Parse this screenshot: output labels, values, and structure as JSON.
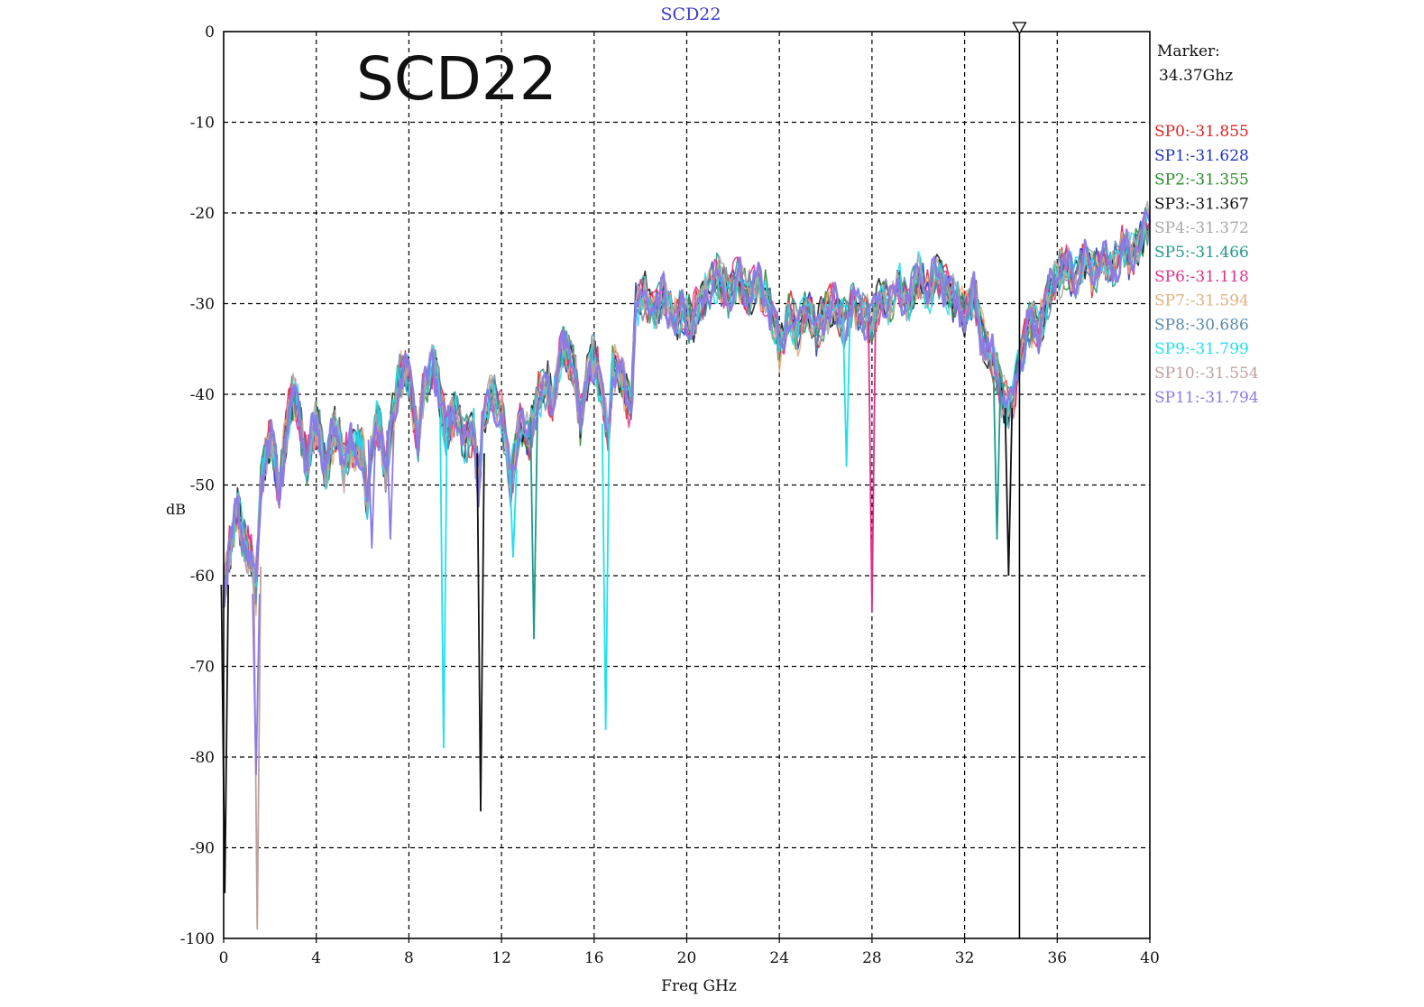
{
  "chart_data": {
    "type": "line",
    "title": "SCD22",
    "overlay_label": "SCD22",
    "xlabel": "Freq GHz",
    "ylabel": "dB",
    "xlim": [
      0,
      40
    ],
    "ylim": [
      -100,
      0
    ],
    "x_ticks": [
      0,
      4,
      8,
      12,
      16,
      20,
      24,
      28,
      32,
      36,
      40
    ],
    "y_ticks": [
      0,
      -10,
      -20,
      -30,
      -40,
      -50,
      -60,
      -70,
      -80,
      -90,
      -100
    ],
    "x_tick_labels": [
      "0",
      "4",
      "8",
      "12",
      "16",
      "20",
      "24",
      "28",
      "32",
      "36",
      "40"
    ],
    "y_tick_labels": [
      "0",
      "-10",
      "-20",
      "-30",
      "-40",
      "-50",
      "-60",
      "-70",
      "-80",
      "-90",
      "-100"
    ],
    "grid": true,
    "legend_position": "right",
    "marker": {
      "label": "Marker:",
      "value_text": "34.37Ghz",
      "x": 34.37
    },
    "series": [
      {
        "name": "SP0",
        "legend_text": "SP0:-31.855",
        "marker_value": -31.855,
        "color": "#e02020"
      },
      {
        "name": "SP1",
        "legend_text": "SP1:-31.628",
        "marker_value": -31.628,
        "color": "#2030c0"
      },
      {
        "name": "SP2",
        "legend_text": "SP2:-31.355",
        "marker_value": -31.355,
        "color": "#2a8a2a"
      },
      {
        "name": "SP3",
        "legend_text": "SP3:-31.367",
        "marker_value": -31.367,
        "color": "#111111"
      },
      {
        "name": "SP4",
        "legend_text": "SP4:-31.372",
        "marker_value": -31.372,
        "color": "#a8a8a8"
      },
      {
        "name": "SP5",
        "legend_text": "SP5:-31.466",
        "marker_value": -31.466,
        "color": "#1f9a8a"
      },
      {
        "name": "SP6",
        "legend_text": "SP6:-31.118",
        "marker_value": -31.118,
        "color": "#e0308a"
      },
      {
        "name": "SP7",
        "legend_text": "SP7:-31.594",
        "marker_value": -31.594,
        "color": "#e0b080"
      },
      {
        "name": "SP8",
        "legend_text": "SP8:-30.686",
        "marker_value": -30.686,
        "color": "#5a8aaa"
      },
      {
        "name": "SP9",
        "legend_text": "SP9:-31.799",
        "marker_value": -31.799,
        "color": "#20e0f0"
      },
      {
        "name": "SP10",
        "legend_text": "SP10:-31.554",
        "marker_value": -31.554,
        "color": "#c0a0a0"
      },
      {
        "name": "SP11",
        "legend_text": "SP11:-31.794",
        "marker_value": -31.794,
        "color": "#8a7ae8"
      }
    ],
    "envelope": [
      [
        0,
        -62
      ],
      [
        0.2,
        -58
      ],
      [
        0.4,
        -55
      ],
      [
        0.6,
        -53
      ],
      [
        0.8,
        -55
      ],
      [
        1.0,
        -57
      ],
      [
        1.2,
        -58
      ],
      [
        1.4,
        -62
      ],
      [
        1.6,
        -50
      ],
      [
        1.8,
        -47
      ],
      [
        2.0,
        -45
      ],
      [
        2.2,
        -47
      ],
      [
        2.4,
        -51
      ],
      [
        2.6,
        -46
      ],
      [
        2.8,
        -42
      ],
      [
        3.0,
        -40
      ],
      [
        3.2,
        -41
      ],
      [
        3.4,
        -45
      ],
      [
        3.6,
        -48
      ],
      [
        3.8,
        -45
      ],
      [
        4.0,
        -43
      ],
      [
        4.2,
        -45
      ],
      [
        4.4,
        -49
      ],
      [
        4.6,
        -46
      ],
      [
        4.8,
        -44
      ],
      [
        5.0,
        -45
      ],
      [
        5.2,
        -48
      ],
      [
        5.4,
        -46
      ],
      [
        5.6,
        -46
      ],
      [
        5.8,
        -46
      ],
      [
        6.0,
        -46
      ],
      [
        6.2,
        -52
      ],
      [
        6.4,
        -45
      ],
      [
        6.6,
        -43
      ],
      [
        6.8,
        -44
      ],
      [
        7.0,
        -49
      ],
      [
        7.2,
        -44
      ],
      [
        7.6,
        -38
      ],
      [
        7.8,
        -37
      ],
      [
        8.0,
        -38
      ],
      [
        8.4,
        -45
      ],
      [
        8.6,
        -40
      ],
      [
        9.0,
        -37
      ],
      [
        9.2,
        -38
      ],
      [
        9.6,
        -44
      ],
      [
        9.8,
        -43
      ],
      [
        10.0,
        -42
      ],
      [
        10.4,
        -45
      ],
      [
        10.8,
        -44
      ],
      [
        11.0,
        -50
      ],
      [
        11.2,
        -43
      ],
      [
        11.6,
        -40
      ],
      [
        12.0,
        -42
      ],
      [
        12.4,
        -50
      ],
      [
        12.8,
        -43
      ],
      [
        13.2,
        -45
      ],
      [
        13.6,
        -40
      ],
      [
        14.0,
        -39
      ],
      [
        14.2,
        -41
      ],
      [
        14.6,
        -35
      ],
      [
        14.8,
        -35
      ],
      [
        15.2,
        -38
      ],
      [
        15.4,
        -43
      ],
      [
        15.8,
        -37
      ],
      [
        16.0,
        -36
      ],
      [
        16.2,
        -38
      ],
      [
        16.6,
        -45
      ],
      [
        16.8,
        -37
      ],
      [
        17.2,
        -38
      ],
      [
        17.6,
        -42
      ],
      [
        17.8,
        -30
      ],
      [
        18.2,
        -29
      ],
      [
        18.6,
        -31
      ],
      [
        19.0,
        -29
      ],
      [
        19.4,
        -32
      ],
      [
        19.8,
        -31
      ],
      [
        20.2,
        -32
      ],
      [
        20.6,
        -30
      ],
      [
        21.0,
        -28
      ],
      [
        21.4,
        -27
      ],
      [
        21.8,
        -29
      ],
      [
        22.2,
        -27
      ],
      [
        22.6,
        -29
      ],
      [
        23.0,
        -28
      ],
      [
        23.4,
        -29
      ],
      [
        23.8,
        -32
      ],
      [
        24.0,
        -35
      ],
      [
        24.4,
        -31
      ],
      [
        24.8,
        -33
      ],
      [
        25.2,
        -30
      ],
      [
        25.6,
        -33
      ],
      [
        26.0,
        -31
      ],
      [
        26.4,
        -30
      ],
      [
        26.8,
        -32
      ],
      [
        27.2,
        -30
      ],
      [
        27.6,
        -31
      ],
      [
        28.0,
        -32
      ],
      [
        28.4,
        -29
      ],
      [
        28.8,
        -30
      ],
      [
        29.2,
        -28
      ],
      [
        29.6,
        -30
      ],
      [
        30.0,
        -27
      ],
      [
        30.4,
        -29
      ],
      [
        30.8,
        -27
      ],
      [
        31.2,
        -28
      ],
      [
        31.6,
        -30
      ],
      [
        32.0,
        -31
      ],
      [
        32.4,
        -29
      ],
      [
        32.8,
        -34
      ],
      [
        33.2,
        -36
      ],
      [
        33.6,
        -40
      ],
      [
        34.0,
        -42
      ],
      [
        34.4,
        -36
      ],
      [
        34.8,
        -32
      ],
      [
        35.2,
        -33
      ],
      [
        35.6,
        -29
      ],
      [
        36.0,
        -27
      ],
      [
        36.4,
        -26
      ],
      [
        36.8,
        -27
      ],
      [
        37.2,
        -25
      ],
      [
        37.6,
        -27
      ],
      [
        38.0,
        -25
      ],
      [
        38.4,
        -26
      ],
      [
        38.8,
        -24
      ],
      [
        39.2,
        -25
      ],
      [
        39.6,
        -23
      ],
      [
        40.0,
        -21
      ]
    ],
    "deep_nulls": [
      {
        "x": 1.45,
        "y": -99,
        "color": "#c0a0a0"
      },
      {
        "x": 1.4,
        "y": -82,
        "color": "#8a7ae8"
      },
      {
        "x": 0.05,
        "y": -95,
        "color": "#111111"
      },
      {
        "x": 9.5,
        "y": -79,
        "color": "#20e0f0"
      },
      {
        "x": 11.1,
        "y": -86,
        "color": "#111111"
      },
      {
        "x": 12.5,
        "y": -58,
        "color": "#20e0f0"
      },
      {
        "x": 13.4,
        "y": -67,
        "color": "#1f9a8a"
      },
      {
        "x": 16.5,
        "y": -77,
        "color": "#20e0f0"
      },
      {
        "x": 6.4,
        "y": -57,
        "color": "#8a7ae8"
      },
      {
        "x": 7.2,
        "y": -56,
        "color": "#8a7ae8"
      },
      {
        "x": 26.9,
        "y": -48,
        "color": "#20e0f0"
      },
      {
        "x": 28.0,
        "y": -64,
        "color": "#e0308a"
      },
      {
        "x": 33.4,
        "y": -56,
        "color": "#1f9a8a"
      },
      {
        "x": 33.9,
        "y": -60,
        "color": "#111111"
      }
    ]
  }
}
